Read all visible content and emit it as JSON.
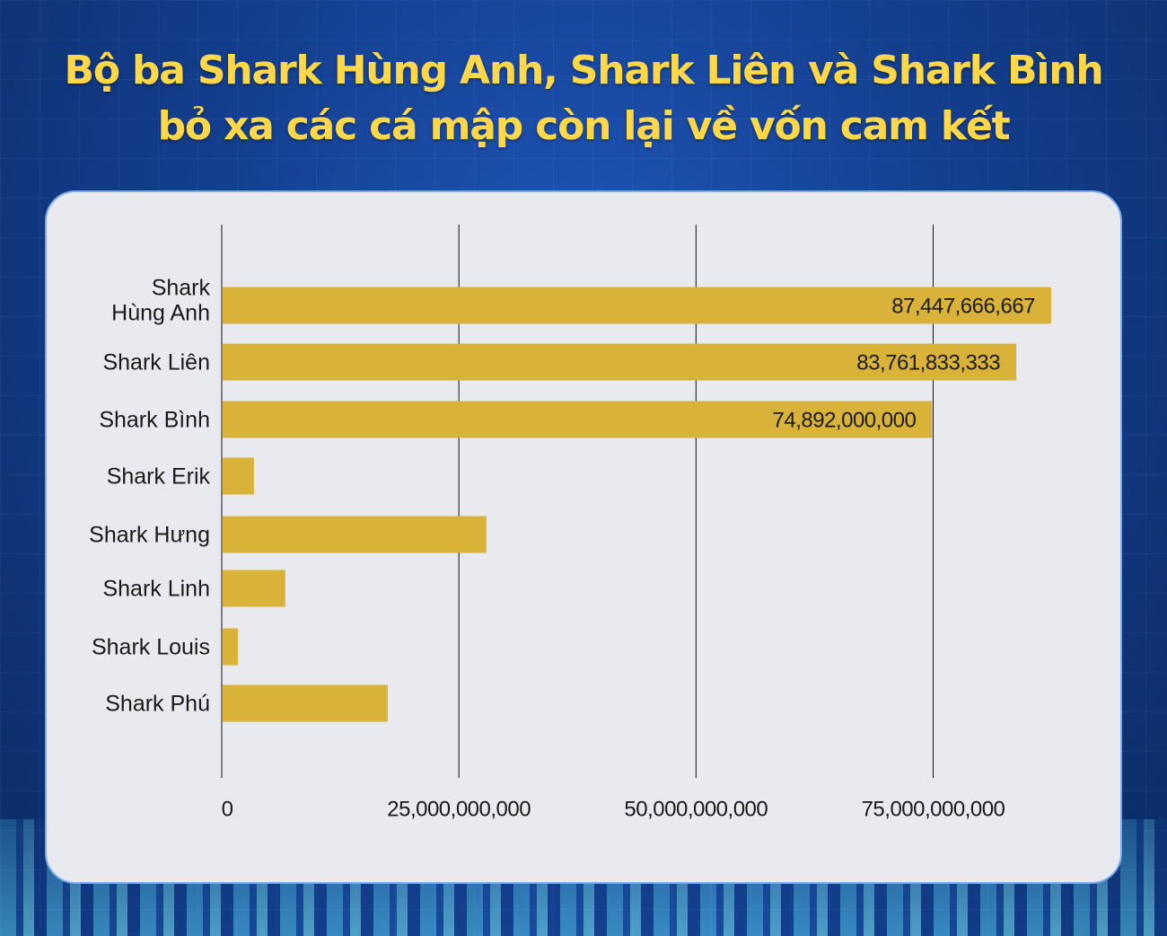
{
  "title": {
    "line1": "Bộ ba Shark Hùng Anh, Shark Liên và Shark Bình",
    "line2": "bỏ xa các cá mập còn lại về vốn cam kết"
  },
  "colors": {
    "bar": "#d9b23a",
    "title": "#ffd84a",
    "card": "#e9eaf0"
  },
  "chart_data": {
    "type": "bar",
    "orientation": "horizontal",
    "categories": [
      [
        "Shark",
        "Hùng Anh"
      ],
      [
        "Shark Liên"
      ],
      [
        "Shark Bình"
      ],
      [
        "Shark Erik"
      ],
      [
        "Shark Hưng"
      ],
      [
        "Shark Linh"
      ],
      [
        "Shark Louis"
      ],
      [
        "Shark Phú"
      ]
    ],
    "values": [
      87447666667,
      83761833333,
      74892000000,
      3400000000,
      27900000000,
      6700000000,
      1700000000,
      17500000000
    ],
    "data_labels": [
      "87,447,666,667",
      "83,761,833,333",
      "74,892,000,000",
      "",
      "",
      "",
      "",
      ""
    ],
    "xlim": [
      0,
      90000000000
    ],
    "xticks": [
      0,
      25000000000,
      50000000000,
      75000000000
    ],
    "xtick_labels": [
      "0",
      "25,000,000,000",
      "50,000,000,000",
      "75,000,000,000"
    ],
    "grid": "vertical lines"
  }
}
